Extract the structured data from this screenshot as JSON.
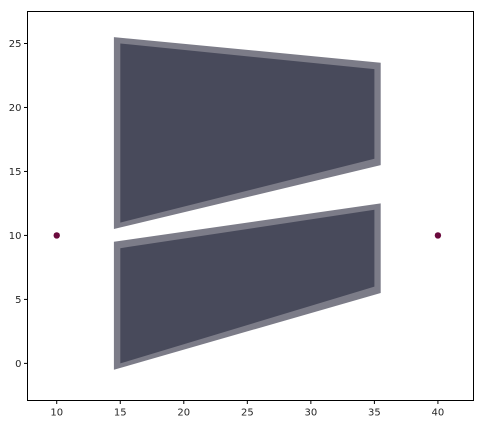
{
  "chart_data": {
    "type": "scatter",
    "title": "",
    "xlabel": "",
    "ylabel": "",
    "xlim": [
      7.7,
      42.8
    ],
    "ylim": [
      -2.9,
      27.5
    ],
    "grid": false,
    "xticks": [
      10,
      15,
      20,
      25,
      30,
      35,
      40
    ],
    "yticks": [
      0,
      5,
      10,
      15,
      20,
      25
    ],
    "xtick_labels": [
      "10",
      "15",
      "20",
      "25",
      "30",
      "35",
      "40"
    ],
    "ytick_labels": [
      "0",
      "5",
      "10",
      "15",
      "20",
      "25"
    ],
    "points": [
      {
        "x": 10,
        "y": 10
      },
      {
        "x": 40,
        "y": 10
      }
    ],
    "point_color": "#6b0a3d",
    "polygons": [
      {
        "outer": [
          [
            14.5,
            25.5
          ],
          [
            35.5,
            23.5
          ],
          [
            35.5,
            15.5
          ],
          [
            14.5,
            10.5
          ]
        ],
        "inner": [
          [
            15.0,
            25.0
          ],
          [
            35.0,
            23.0
          ],
          [
            35.0,
            16.0
          ],
          [
            15.0,
            11.0
          ]
        ]
      },
      {
        "outer": [
          [
            14.5,
            9.5
          ],
          [
            35.5,
            12.5
          ],
          [
            35.5,
            5.5
          ],
          [
            14.5,
            -0.5
          ]
        ],
        "inner": [
          [
            15.0,
            9.0
          ],
          [
            35.0,
            12.0
          ],
          [
            35.0,
            6.0
          ],
          [
            15.0,
            0.0
          ]
        ]
      }
    ],
    "outer_fill": "#7c7c88",
    "inner_fill": "#484a5b"
  }
}
